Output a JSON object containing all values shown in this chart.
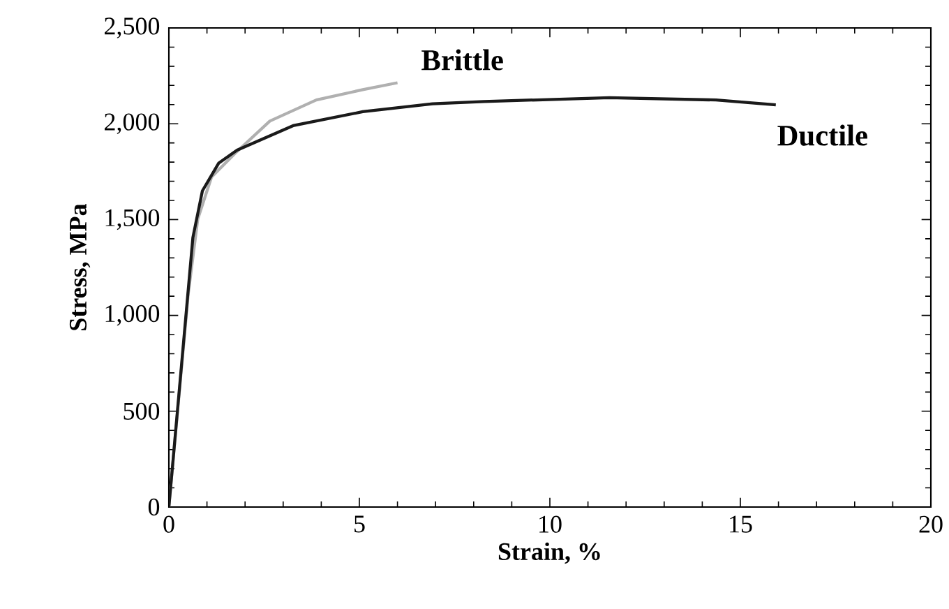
{
  "chart_data": {
    "type": "line",
    "xlabel": "Strain, %",
    "ylabel": "Stress, MPa",
    "xlim": [
      0,
      20
    ],
    "ylim": [
      0,
      2500
    ],
    "xticks": [
      0,
      5,
      10,
      15,
      20
    ],
    "yticks": [
      0,
      500,
      {
        "value": 1000,
        "label": "1,000"
      },
      {
        "value": 1500,
        "label": "1,500"
      },
      {
        "value": 2000,
        "label": "2,000"
      },
      {
        "value": 2500,
        "label": "2,500"
      }
    ],
    "grid": false,
    "legend": false,
    "marker": "none",
    "line_style": "solid",
    "series": [
      {
        "name": "Brittle",
        "color": "#b0b0b0",
        "x": [
          0,
          0.51,
          0.76,
          1.12,
          1.73,
          2.65,
          3.87,
          5.09,
          6.0
        ],
        "values": [
          0,
          1115,
          1504,
          1722,
          1844,
          2014,
          2124,
          2178,
          2214
        ]
      },
      {
        "name": "Ductile",
        "color": "#1a1a1a",
        "x": [
          0,
          0.63,
          0.88,
          1.31,
          1.79,
          3.26,
          5.09,
          6.92,
          8.27,
          11.56,
          14.36,
          15.93
        ],
        "values": [
          0,
          1406,
          1650,
          1795,
          1862,
          1990,
          2063,
          2104,
          2116,
          2136,
          2124,
          2099
        ]
      }
    ]
  }
}
